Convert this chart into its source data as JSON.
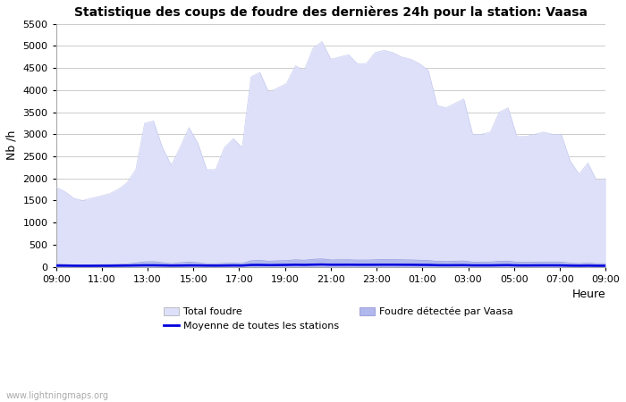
{
  "title": "Statistique des coups de foudre des dernières 24h pour la station: Vaasa",
  "xlabel": "Heure",
  "ylabel": "Nb /h",
  "ylim": [
    0,
    5500
  ],
  "yticks": [
    0,
    500,
    1000,
    1500,
    2000,
    2500,
    3000,
    3500,
    4000,
    4500,
    5000,
    5500
  ],
  "xtick_labels": [
    "09:00",
    "11:00",
    "13:00",
    "15:00",
    "17:00",
    "19:00",
    "21:00",
    "23:00",
    "01:00",
    "03:00",
    "05:00",
    "07:00",
    "09:00"
  ],
  "watermark": "www.lightningmaps.org",
  "bg_color": "#ffffff",
  "plot_bg_color": "#ffffff",
  "grid_color": "#cccccc",
  "total_foudre_fill": "#dde0f8",
  "total_foudre_line": "#c8cdf0",
  "vaasa_fill": "#b0b8ee",
  "vaasa_line": "#9098e0",
  "moyenne_color": "#0000dd",
  "total_foudre": [
    1800,
    1700,
    1550,
    1500,
    1550,
    1600,
    1650,
    1750,
    1900,
    2200,
    3250,
    3300,
    2700,
    2300,
    2700,
    3150,
    2800,
    2200,
    2200,
    2700,
    2900,
    2700,
    4300,
    4400,
    3950,
    4050,
    4150,
    4550,
    4450,
    4950,
    5100,
    4700,
    4750,
    4800,
    4600,
    4600,
    4850,
    4900,
    4850,
    4750,
    4700,
    4600,
    4450,
    3650,
    3600,
    3700,
    3800,
    3000,
    3000,
    3050,
    3500,
    3600,
    2950,
    2950,
    3000,
    3050,
    3000,
    3000,
    2400,
    2100,
    2350,
    1950,
    2000
  ],
  "vaasa": [
    60,
    55,
    45,
    42,
    44,
    48,
    50,
    55,
    65,
    85,
    110,
    115,
    92,
    72,
    90,
    105,
    92,
    68,
    68,
    78,
    88,
    75,
    135,
    145,
    125,
    135,
    138,
    158,
    148,
    168,
    178,
    155,
    158,
    158,
    152,
    152,
    158,
    162,
    162,
    158,
    155,
    148,
    142,
    122,
    118,
    125,
    132,
    105,
    106,
    108,
    122,
    128,
    102,
    100,
    102,
    108,
    108,
    106,
    82,
    72,
    85,
    68,
    70
  ],
  "moyenne": [
    25,
    24,
    22,
    21,
    21,
    22,
    22,
    24,
    26,
    29,
    32,
    32,
    29,
    26,
    27,
    30,
    29,
    26,
    25,
    27,
    29,
    27,
    40,
    41,
    37,
    39,
    41,
    45,
    42,
    47,
    50,
    45,
    45,
    46,
    44,
    44,
    45,
    46,
    46,
    45,
    44,
    42,
    41,
    35,
    34,
    35,
    36,
    31,
    31,
    31,
    34,
    36,
    30,
    29,
    30,
    31,
    31,
    30,
    25,
    23,
    25,
    22,
    22
  ]
}
